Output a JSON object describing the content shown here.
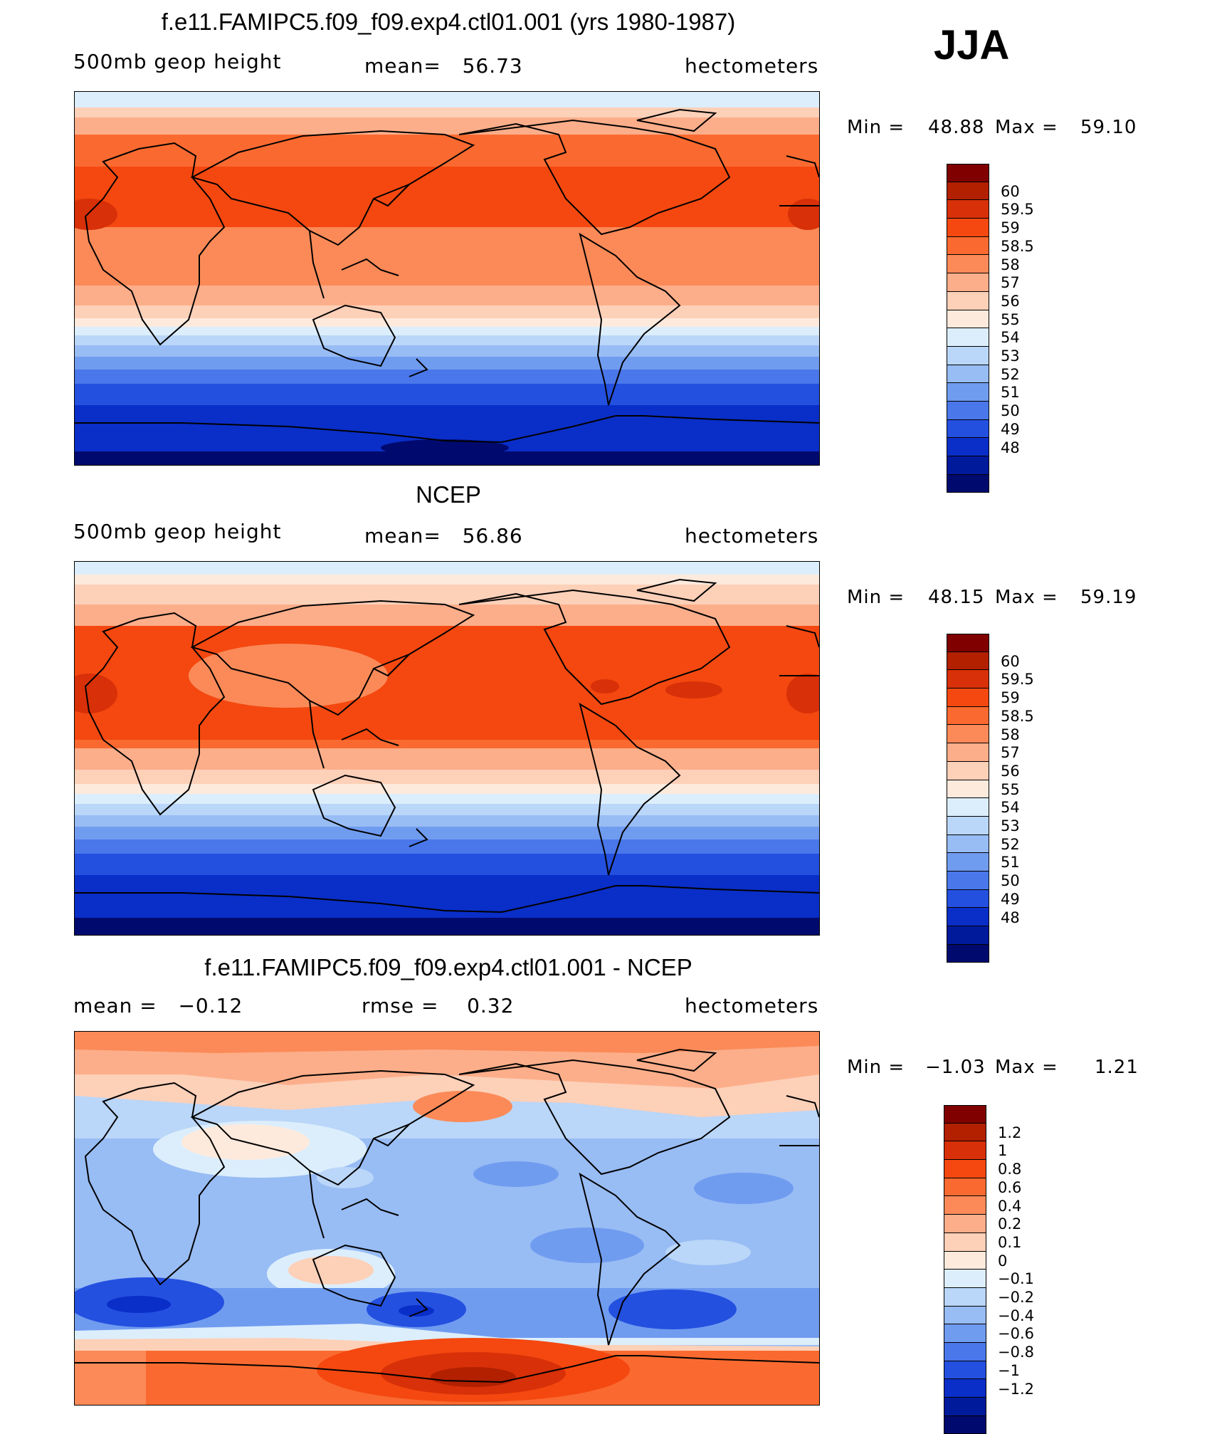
{
  "season": "JJA",
  "panels": [
    {
      "id": "model",
      "title": "f.e11.FAMIPC5.f09_f09.exp4.ctl01.001 (yrs 1980-1987)",
      "left_label": "500mb geop height",
      "center_label": "mean=   56.73",
      "right_label": "hectometers",
      "min_label": "Min =",
      "min_value": "48.88",
      "max_label": "Max =",
      "max_value": "59.10",
      "colorbar": {
        "labels": [
          "60",
          "59.5",
          "59",
          "58.5",
          "58",
          "57",
          "56",
          "55",
          "54",
          "53",
          "52",
          "51",
          "50",
          "49",
          "48"
        ],
        "colors": [
          "#800000",
          "#b22000",
          "#d83008",
          "#f44810",
          "#fa6a30",
          "#fb8a58",
          "#fcae8a",
          "#fdd0b8",
          "#feeadc",
          "#dceefc",
          "#bad6f8",
          "#98bcf4",
          "#709cf0",
          "#4a78ea",
          "#2450e0",
          "#0a2ec8",
          "#001a9c",
          "#000a6e"
        ]
      }
    },
    {
      "id": "obs",
      "title": "NCEP",
      "left_label": "500mb geop height",
      "center_label": "mean=   56.86",
      "right_label": "hectometers",
      "min_label": "Min =",
      "min_value": "48.15",
      "max_label": "Max =",
      "max_value": "59.19",
      "colorbar": {
        "labels": [
          "60",
          "59.5",
          "59",
          "58.5",
          "58",
          "57",
          "56",
          "55",
          "54",
          "53",
          "52",
          "51",
          "50",
          "49",
          "48"
        ],
        "colors": [
          "#800000",
          "#b22000",
          "#d83008",
          "#f44810",
          "#fa6a30",
          "#fb8a58",
          "#fcae8a",
          "#fdd0b8",
          "#feeadc",
          "#dceefc",
          "#bad6f8",
          "#98bcf4",
          "#709cf0",
          "#4a78ea",
          "#2450e0",
          "#0a2ec8",
          "#001a9c",
          "#000a6e"
        ]
      }
    },
    {
      "id": "diff",
      "title": "f.e11.FAMIPC5.f09_f09.exp4.ctl01.001 - NCEP",
      "left_label": "mean =   −0.12",
      "center_label": "rmse =    0.32",
      "right_label": "hectometers",
      "min_label": "Min =",
      "min_value": "−1.03",
      "max_label": "Max =",
      "max_value": "1.21",
      "colorbar": {
        "labels": [
          "1.2",
          "1",
          "0.8",
          "0.6",
          "0.4",
          "0.2",
          "0.1",
          "0",
          "−0.1",
          "−0.2",
          "−0.4",
          "−0.6",
          "−0.8",
          "−1",
          "−1.2"
        ],
        "colors": [
          "#800000",
          "#b22000",
          "#d83008",
          "#f44810",
          "#fa6a30",
          "#fb8a58",
          "#fcae8a",
          "#fdd0b8",
          "#feeadc",
          "#dceefc",
          "#bad6f8",
          "#98bcf4",
          "#709cf0",
          "#4a78ea",
          "#2450e0",
          "#0a2ec8",
          "#001a9c",
          "#000a6e"
        ]
      }
    }
  ]
}
